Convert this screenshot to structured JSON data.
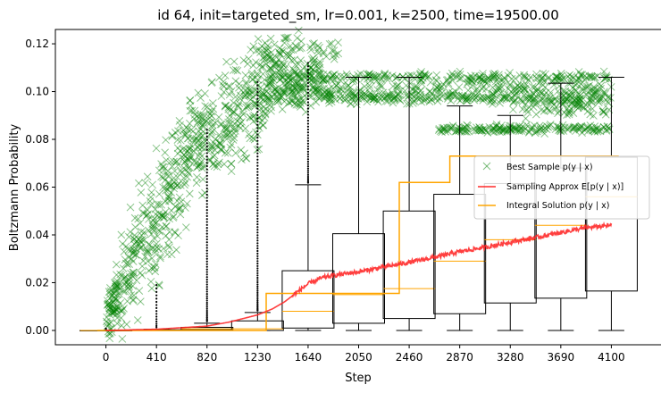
{
  "chart_data": {
    "type": "box+scatter+line",
    "title": "id 64, init=targeted_sm, lr=0.001, k=2500, time=19500.00",
    "xlabel": "Step",
    "ylabel": "Boltzmann Probability",
    "xlim": [
      -410,
      4510
    ],
    "ylim": [
      -0.006,
      0.126
    ],
    "x_ticks": [
      "0",
      "410",
      "820",
      "1230",
      "1640",
      "2050",
      "2460",
      "2870",
      "3280",
      "3690",
      "4100"
    ],
    "y_ticks": [
      "0.00",
      "0.02",
      "0.04",
      "0.06",
      "0.08",
      "0.10",
      "0.12"
    ],
    "grid": false,
    "legend_position": "center-right",
    "legend": [
      {
        "label": "Best Sample p(y | x)",
        "marker": "x",
        "color": "#008000"
      },
      {
        "label": "Sampling Approx E[p(y | x)]",
        "marker": "line",
        "color": "#ff2a2a"
      },
      {
        "label": "Integral Solution p(y | x)",
        "marker": "line",
        "color": "#ffa500"
      }
    ],
    "boxes": [
      {
        "x": 0,
        "whislo": 0.0,
        "q1": 0.0,
        "med": 0.0,
        "q3": 0.0,
        "whishi": 0.0,
        "outliers_max": 0.0
      },
      {
        "x": 410,
        "whislo": 0.0,
        "q1": 0.0,
        "med": 0.0,
        "q3": 0.0003,
        "whishi": 0.0005,
        "outliers_max": 0.019
      },
      {
        "x": 820,
        "whislo": 0.0,
        "q1": 0.0003,
        "med": 0.0007,
        "q3": 0.0013,
        "whishi": 0.003,
        "outliers_max": 0.084
      },
      {
        "x": 1230,
        "whislo": 0.0,
        "q1": 0.0,
        "med": 0.0007,
        "q3": 0.004,
        "whishi": 0.0075,
        "outliers_max": 0.104
      },
      {
        "x": 1640,
        "whislo": 0.0,
        "q1": 0.001,
        "med": 0.008,
        "q3": 0.025,
        "whishi": 0.061,
        "outliers_max": 0.112
      },
      {
        "x": 2050,
        "whislo": 0.0,
        "q1": 0.003,
        "med": 0.015,
        "q3": 0.0405,
        "whishi": 0.106,
        "outliers_max": null
      },
      {
        "x": 2460,
        "whislo": 0.0,
        "q1": 0.005,
        "med": 0.0175,
        "q3": 0.05,
        "whishi": 0.106,
        "outliers_max": null
      },
      {
        "x": 2870,
        "whislo": 0.0,
        "q1": 0.007,
        "med": 0.029,
        "q3": 0.057,
        "whishi": 0.094,
        "outliers_max": null
      },
      {
        "x": 3280,
        "whislo": 0.0,
        "q1": 0.0115,
        "med": 0.038,
        "q3": 0.0615,
        "whishi": 0.09,
        "outliers_max": null
      },
      {
        "x": 3690,
        "whislo": 0.0,
        "q1": 0.0135,
        "med": 0.044,
        "q3": 0.068,
        "whishi": 0.1035,
        "outliers_max": null
      },
      {
        "x": 4100,
        "whislo": 0.0,
        "q1": 0.0165,
        "med": 0.056,
        "q3": 0.0725,
        "whishi": 0.106,
        "outliers_max": null
      }
    ],
    "sampling_approx": {
      "x": [
        0,
        410,
        820,
        1000,
        1230,
        1350,
        1450,
        1550,
        1640,
        1750,
        1900,
        2050,
        2250,
        2460,
        2700,
        2870,
        3100,
        3280,
        3500,
        3690,
        3900,
        4100
      ],
      "y": [
        0.0,
        0.0005,
        0.0018,
        0.0035,
        0.0065,
        0.009,
        0.012,
        0.016,
        0.0195,
        0.022,
        0.0235,
        0.0245,
        0.0265,
        0.0285,
        0.031,
        0.033,
        0.035,
        0.037,
        0.039,
        0.041,
        0.043,
        0.044
      ]
    },
    "integral_solution": {
      "x": [
        -70,
        1300,
        1300,
        2380,
        2380,
        2790,
        2790,
        4160
      ],
      "y": [
        0.0,
        0.0,
        0.0155,
        0.0155,
        0.062,
        0.062,
        0.073,
        0.073
      ]
    },
    "best_sample_clusters": [
      {
        "from": 0,
        "to": 120,
        "center_start": 0.0,
        "center_end": 0.02,
        "spread": 0.006,
        "count": 80
      },
      {
        "from": 120,
        "to": 700,
        "center_start": 0.02,
        "center_end": 0.075,
        "spread": 0.012,
        "count": 300
      },
      {
        "from": 700,
        "to": 1300,
        "center_start": 0.075,
        "center_end": 0.1,
        "spread": 0.01,
        "count": 280
      },
      {
        "from": 1300,
        "to": 1750,
        "center_start": 0.103,
        "center_end": 0.104,
        "spread": 0.006,
        "count": 240
      },
      {
        "from": 1200,
        "to": 1900,
        "center_start": 0.118,
        "center_end": 0.118,
        "spread": 0.003,
        "count": 60
      },
      {
        "from": 1750,
        "to": 4100,
        "center_start": 0.1,
        "center_end": 0.1,
        "spread": 0.0025,
        "count": 300
      },
      {
        "from": 1750,
        "to": 4100,
        "center_start": 0.106,
        "center_end": 0.106,
        "spread": 0.001,
        "count": 200
      },
      {
        "from": 1750,
        "to": 4100,
        "center_start": 0.097,
        "center_end": 0.097,
        "spread": 0.001,
        "count": 150
      },
      {
        "from": 2700,
        "to": 4100,
        "center_start": 0.0845,
        "center_end": 0.0845,
        "spread": 0.0008,
        "count": 180
      },
      {
        "from": 3300,
        "to": 4100,
        "center_start": 0.093,
        "center_end": 0.093,
        "spread": 0.002,
        "count": 60
      }
    ]
  }
}
